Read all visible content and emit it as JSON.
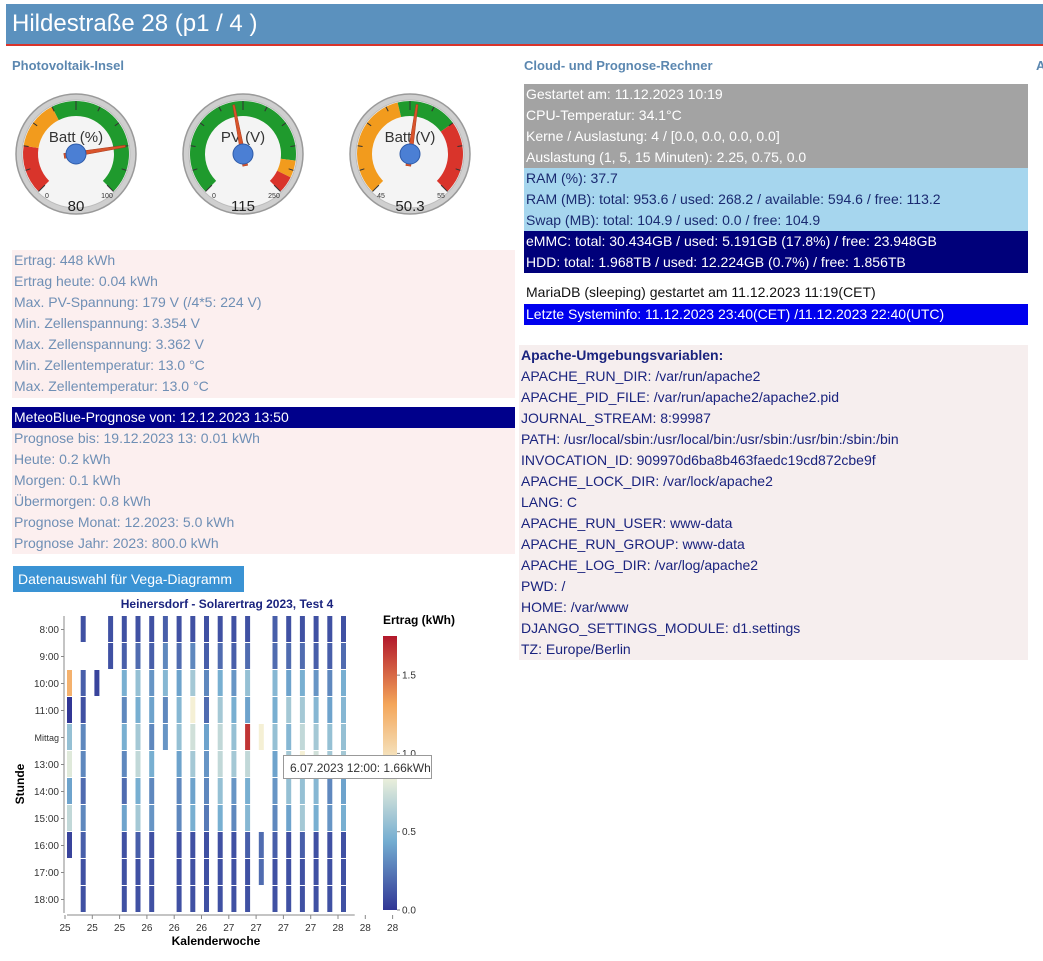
{
  "header": {
    "title": "Hildestraße 28 (p1 / 4 )"
  },
  "sections": {
    "pv": "Photovoltaik-Insel",
    "cloud": "Cloud- und Prognose-Rechner",
    "third": "A"
  },
  "gauges": [
    {
      "label": "Batt (%)",
      "value": 80,
      "display": "80",
      "min": 0,
      "max": 100,
      "tick_min": "0",
      "tick_max": "100"
    },
    {
      "label": "PV (V)",
      "value": 115,
      "display": "115",
      "min": 0,
      "max": 250,
      "tick_min": "0",
      "tick_max": "250"
    },
    {
      "label": "Batt (V)",
      "value": 50.3,
      "display": "50.3",
      "min": 45,
      "max": 55,
      "tick_min": "45",
      "tick_max": "55"
    }
  ],
  "pv_info": [
    "Ertrag: 448 kWh",
    "Ertrag heute: 0.04 kWh",
    "Max. PV-Spannung: 179 V (/4*5: 224 V)",
    "Min. Zellenspannung: 3.354 V",
    "Max. Zellenspannung: 3.362 V",
    "Min. Zellentemperatur: 13.0 °C",
    "Max. Zellentemperatur: 13.0 °C"
  ],
  "meteo": {
    "header": "MeteoBlue-Prognose von: 12.12.2023 13:50",
    "lines": [
      "Prognose bis: 19.12.2023 13: 0.01 kWh",
      "Heute: 0.2 kWh",
      "Morgen: 0.1 kWh",
      "Übermorgen: 0.8 kWh",
      "Prognose Monat: 12.2023: 5.0 kWh",
      "Prognose Jahr: 2023: 800.0 kWh"
    ]
  },
  "vega_button": "Datenauswahl für Vega-Diagramm",
  "system": {
    "gray": [
      "Gestartet am: 11.12.2023 10:19",
      "CPU-Temperatur: 34.1°C",
      "Kerne / Auslastung: 4 / [0.0, 0.0, 0.0, 0.0]",
      "Auslastung (1, 5, 15 Minuten): 2.25, 0.75, 0.0"
    ],
    "lightblue": [
      "RAM (%): 37.7",
      "RAM (MB): total: 953.6 / used: 268.2 / available: 594.6 / free: 113.2",
      "Swap (MB): total: 104.9 / used: 0.0 / free: 104.9"
    ],
    "navy": [
      "eMMC: total: 30.434GB / used: 5.191GB (17.8%) / free: 23.948GB",
      "HDD: total: 1.968TB / used: 12.224GB (0.7%) / free: 1.856TB"
    ],
    "mariadb": "MariaDB (sleeping) gestartet am 11.12.2023 11:19(CET)",
    "last_info": "Letzte Systeminfo: 11.12.2023 23:40(CET) /11.12.2023 22:40(UTC)"
  },
  "apache": {
    "header": "Apache-Umgebungsvariablen:",
    "lines": [
      "APACHE_RUN_DIR: /var/run/apache2",
      "APACHE_PID_FILE: /var/run/apache2/apache2.pid",
      "JOURNAL_STREAM: 8:99987",
      "PATH: /usr/local/sbin:/usr/local/bin:/usr/sbin:/usr/bin:/sbin:/bin",
      "INVOCATION_ID: 909970d6ba8b463faedc19cd872cbe9f",
      "APACHE_LOCK_DIR: /var/lock/apache2",
      "LANG: C",
      "APACHE_RUN_USER: www-data",
      "APACHE_RUN_GROUP: www-data",
      "APACHE_LOG_DIR: /var/log/apache2",
      "PWD: /",
      "HOME: /var/www",
      "DJANGO_SETTINGS_MODULE: d1.settings",
      "TZ: Europe/Berlin"
    ]
  },
  "chart_data": {
    "type": "heatmap",
    "title": "Heinersdorf - Solarertrag 2023, Test 4",
    "xlabel": "Kalenderwoche",
    "ylabel": "Stunde",
    "legend_title": "Ertrag (kWh)",
    "legend_ticks": [
      "1.5",
      "1.0",
      "0.5",
      "0.0"
    ],
    "legend_placement": "right",
    "y_categories": [
      "8:00",
      "9:00",
      "10:00",
      "11:00",
      "Mittag",
      "13:00",
      "14:00",
      "15:00",
      "16:00",
      "17:00",
      "18:00"
    ],
    "x_ticks": [
      "25",
      "25",
      "25",
      "26",
      "26",
      "26",
      "27",
      "27",
      "27",
      "27",
      "28",
      "28",
      "28"
    ],
    "columns": [
      {
        "v": [
          null,
          null,
          1.25,
          0.0,
          0.55,
          0.8,
          0.4,
          0.7,
          0.05,
          null,
          null
        ]
      },
      {
        "v": [
          0.1,
          null,
          0.15,
          0.1,
          0.3,
          0.3,
          0.2,
          0.3,
          0.15,
          0.1,
          0.1
        ]
      },
      {
        "v": [
          null,
          null,
          0.05,
          null,
          null,
          null,
          null,
          null,
          null,
          null,
          null
        ]
      },
      {
        "v": [
          0.1,
          0.1,
          null,
          null,
          null,
          null,
          null,
          null,
          null,
          null,
          null
        ]
      },
      {
        "v": [
          0.1,
          0.15,
          0.45,
          0.3,
          0.45,
          0.3,
          0.2,
          0.4,
          0.1,
          0.1,
          0.1
        ]
      },
      {
        "v": [
          0.1,
          0.2,
          0.55,
          0.45,
          0.6,
          0.7,
          0.45,
          0.6,
          0.15,
          0.1,
          0.1
        ]
      },
      {
        "v": [
          0.1,
          0.15,
          0.35,
          0.4,
          0.3,
          0.45,
          0.3,
          0.35,
          0.1,
          0.1,
          0.1
        ]
      },
      {
        "v": [
          0.15,
          0.3,
          0.5,
          0.3,
          0.35,
          null,
          null,
          null,
          null,
          null,
          null
        ]
      },
      {
        "v": [
          0.1,
          0.2,
          0.4,
          0.5,
          0.55,
          0.4,
          0.3,
          0.3,
          0.1,
          0.1,
          0.1
        ]
      },
      {
        "v": [
          0.1,
          0.3,
          0.6,
          0.9,
          0.75,
          0.6,
          0.4,
          0.45,
          0.1,
          0.1,
          0.1
        ]
      },
      {
        "v": [
          0.1,
          0.15,
          0.3,
          0.2,
          0.4,
          0.35,
          0.3,
          0.25,
          0.1,
          0.1,
          0.1
        ]
      },
      {
        "v": [
          0.1,
          0.2,
          0.45,
          0.6,
          0.7,
          0.7,
          0.55,
          0.45,
          0.1,
          0.1,
          0.1
        ]
      },
      {
        "v": [
          0.1,
          0.15,
          0.35,
          0.45,
          0.55,
          0.6,
          0.35,
          0.3,
          0.1,
          0.1,
          0.1
        ]
      },
      {
        "v": [
          0.1,
          0.2,
          0.55,
          0.4,
          1.66,
          0.7,
          0.45,
          0.5,
          0.15,
          0.1,
          0.1
        ]
      },
      {
        "v": [
          null,
          null,
          null,
          null,
          0.9,
          null,
          null,
          null,
          0.2,
          0.2,
          null
        ]
      },
      {
        "v": [
          0.15,
          0.2,
          0.5,
          0.45,
          0.55,
          0.4,
          0.35,
          0.3,
          0.15,
          0.1,
          0.1
        ]
      },
      {
        "v": [
          0.1,
          0.2,
          0.4,
          0.6,
          0.5,
          0.6,
          0.55,
          0.4,
          0.1,
          0.1,
          0.1
        ]
      },
      {
        "v": [
          0.1,
          0.2,
          0.45,
          0.6,
          0.7,
          0.9,
          0.55,
          0.6,
          0.15,
          0.1,
          0.1
        ]
      },
      {
        "v": [
          0.1,
          0.15,
          0.35,
          0.5,
          0.6,
          0.75,
          0.5,
          0.45,
          0.1,
          0.1,
          0.1
        ]
      },
      {
        "v": [
          0.1,
          0.15,
          0.3,
          0.4,
          0.55,
          0.6,
          0.3,
          0.35,
          0.1,
          0.1,
          0.1
        ]
      },
      {
        "v": [
          0.1,
          0.2,
          0.45,
          0.5,
          0.55,
          0.6,
          0.4,
          0.45,
          0.1,
          0.1,
          0.1
        ]
      }
    ],
    "tooltip": "6.07.2023 12:00: 1.66kWh"
  }
}
